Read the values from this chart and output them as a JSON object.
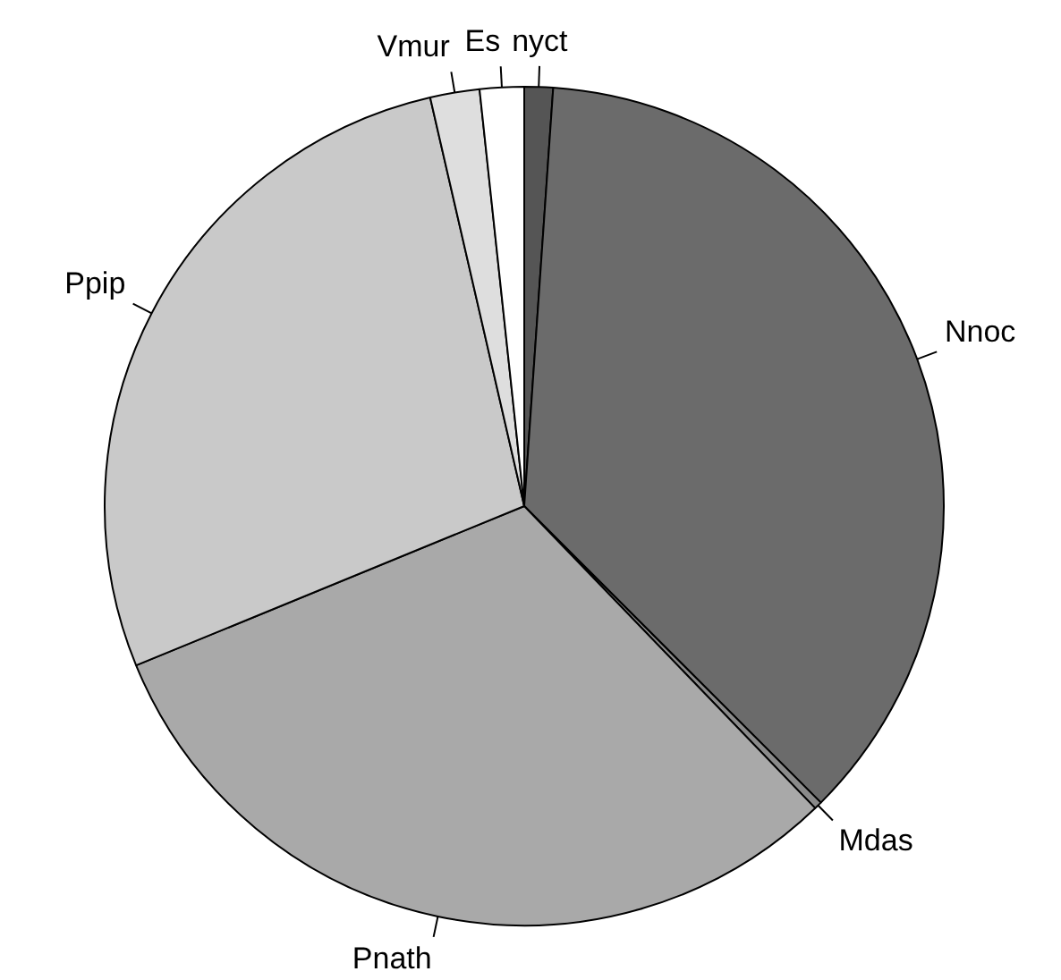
{
  "chart_data": {
    "type": "pie",
    "categories": [
      "nyct",
      "Nnoc",
      "Mdas",
      "Pnath",
      "Ppip",
      "Vmur",
      "Es"
    ],
    "values": [
      1.1,
      36.4,
      0.3,
      31,
      27.6,
      1.9,
      1.7
    ],
    "colors": [
      "#555555",
      "#6b6b6b",
      "#8a8a8a",
      "#a9a9a9",
      "#c9c9c9",
      "#dedede",
      "#ffffff"
    ],
    "legend": false
  }
}
